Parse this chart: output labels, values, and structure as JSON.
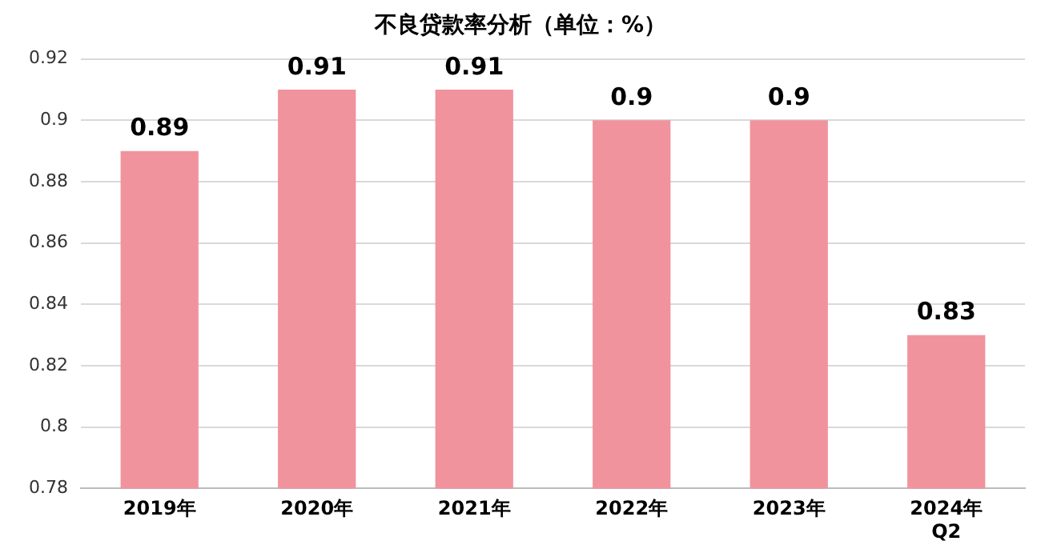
{
  "chart_data": {
    "type": "bar",
    "title": "不良贷款率分析（单位：%）",
    "categories": [
      "2019年",
      "2020年",
      "2021年",
      "2022年",
      "2023年",
      "2024年\nQ2"
    ],
    "series": [
      {
        "color": "#f0939d",
        "values": [
          0.89,
          0.91,
          0.91,
          0.9,
          0.9,
          0.83
        ]
      }
    ],
    "ylim": [
      0.78,
      0.92
    ],
    "yticks": [
      0.78,
      0.8,
      0.82,
      0.84,
      0.86,
      0.88,
      0.9,
      0.92
    ],
    "grid": "y",
    "data_labels": true
  }
}
